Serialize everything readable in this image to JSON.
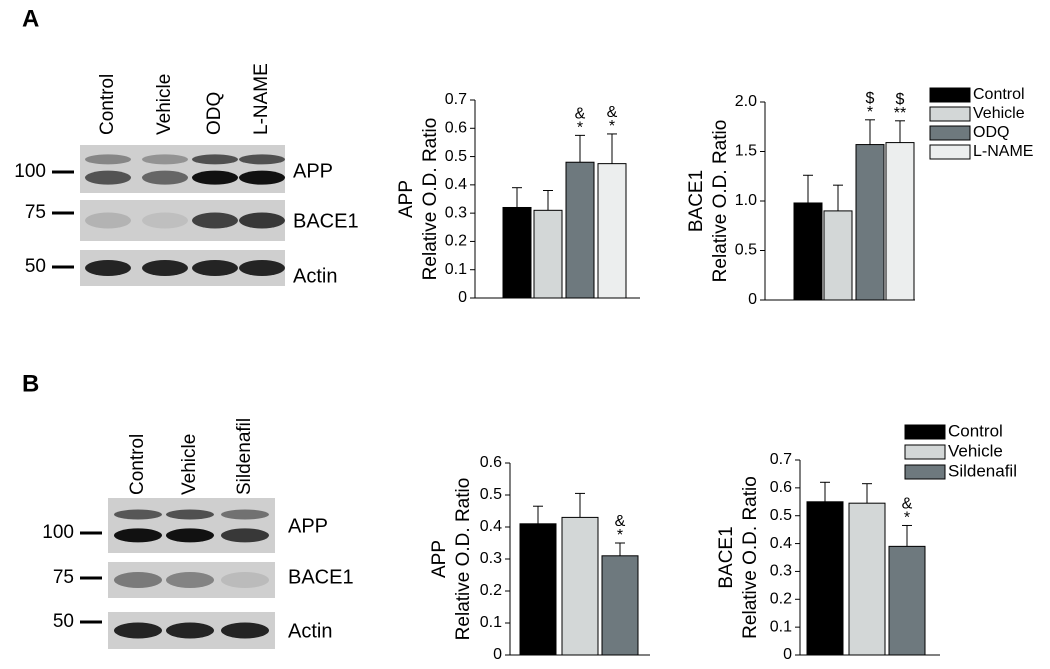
{
  "panels": [
    {
      "label": "A",
      "lanes": [
        "Control",
        "Vehicle",
        "ODQ",
        "L-NAME"
      ],
      "markers": [
        "100",
        "75",
        "50"
      ],
      "proteins": [
        "APP",
        "BACE1",
        "Actin"
      ]
    },
    {
      "label": "B",
      "lanes": [
        "Control",
        "Vehicle",
        "Sildenafil"
      ],
      "markers": [
        "100",
        "75",
        "50"
      ],
      "proteins": [
        "APP",
        "BACE1",
        "Actin"
      ]
    }
  ],
  "chart_data": [
    {
      "type": "bar",
      "ylabel": [
        "APP",
        "Relative O.D. Ratio"
      ],
      "colors": [
        "#000000",
        "#d3d7d7",
        "#6e797e",
        "#eceeee"
      ],
      "values": [
        0.32,
        0.31,
        0.48,
        0.475
      ],
      "errors": [
        0.07,
        0.07,
        0.095,
        0.105
      ],
      "annotations": [
        null,
        null,
        [
          "&",
          "*"
        ],
        [
          "&",
          "*"
        ]
      ],
      "ylim": [
        0,
        0.7
      ],
      "yticks": [
        0,
        0.1,
        0.2,
        0.3,
        0.4,
        0.5,
        0.6,
        0.7
      ]
    },
    {
      "type": "bar",
      "ylabel": [
        "BACE1",
        "Relative O.D. Ratio"
      ],
      "categories": [
        "Control",
        "Vehicle",
        "ODQ",
        "L-NAME"
      ],
      "colors": [
        "#000000",
        "#d3d7d7",
        "#6e797e",
        "#eceeee"
      ],
      "values": [
        0.98,
        0.9,
        1.57,
        1.59
      ],
      "errors": [
        0.28,
        0.26,
        0.25,
        0.22
      ],
      "annotations": [
        null,
        null,
        [
          "$",
          "*"
        ],
        [
          "$",
          "**"
        ]
      ],
      "ylim": [
        0,
        2.0
      ],
      "yticks": [
        0,
        0.5,
        {
          "value": 1.0,
          "label": "1.0"
        },
        1.5,
        {
          "value": 2.0,
          "label": "2.0"
        }
      ],
      "legend": "upper right"
    },
    {
      "type": "bar",
      "ylabel": [
        "APP",
        "Relative O.D. Ratio"
      ],
      "colors": [
        "#000000",
        "#d3d7d7",
        "#6e797e"
      ],
      "values": [
        0.41,
        0.43,
        0.31
      ],
      "errors": [
        0.055,
        0.075,
        0.04
      ],
      "annotations": [
        null,
        null,
        [
          "&",
          "*"
        ]
      ],
      "ylim": [
        0,
        0.6
      ],
      "yticks": [
        0,
        0.1,
        0.2,
        0.3,
        0.4,
        0.5,
        0.6
      ]
    },
    {
      "type": "bar",
      "ylabel": [
        "BACE1",
        "Relative O.D. Ratio"
      ],
      "categories": [
        "Control",
        "Vehicle",
        "Sildenafil"
      ],
      "colors": [
        "#000000",
        "#d3d7d7",
        "#6e797e"
      ],
      "values": [
        0.55,
        0.545,
        0.39
      ],
      "errors": [
        0.07,
        0.07,
        0.075
      ],
      "annotations": [
        null,
        null,
        [
          "&",
          "*"
        ]
      ],
      "ylim": [
        0,
        0.7
      ],
      "yticks": [
        0,
        0.1,
        0.2,
        0.3,
        0.4,
        0.5,
        0.6,
        0.7
      ],
      "legend": "upper right"
    }
  ]
}
